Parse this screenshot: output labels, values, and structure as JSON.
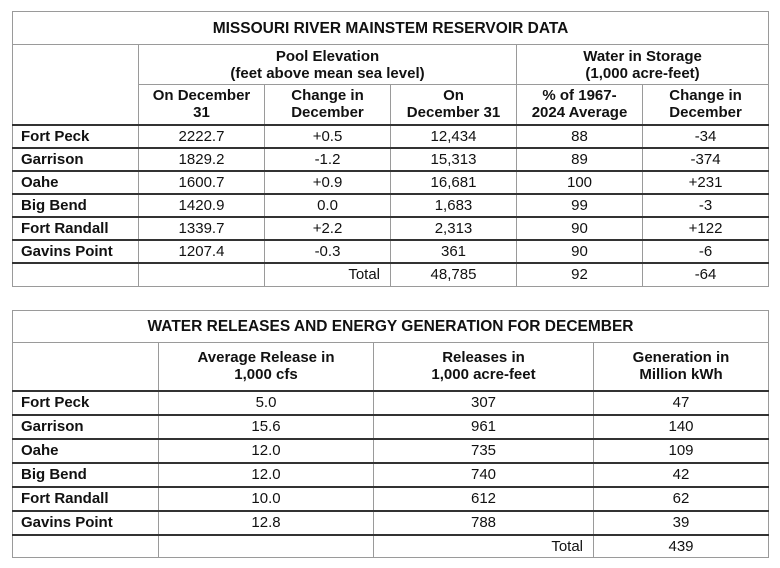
{
  "reservoir": {
    "title": "MISSOURI RIVER MAINSTEM RESERVOIR DATA",
    "group_pool": [
      "Pool Elevation",
      "(feet above mean sea level)"
    ],
    "group_storage": [
      "Water in Storage",
      "(1,000 acre-feet)"
    ],
    "columns": [
      [
        "On December",
        "31"
      ],
      [
        "Change in",
        "December"
      ],
      [
        "On",
        "December 31"
      ],
      [
        "% of 1967-",
        "2024 Average"
      ],
      [
        "Change in",
        "December"
      ]
    ],
    "rows": [
      {
        "name": "Fort Peck",
        "elev": "2222.7",
        "elev_change": "+0.5",
        "storage": "12,434",
        "pct": "88",
        "storage_change": "-34"
      },
      {
        "name": "Garrison",
        "elev": "1829.2",
        "elev_change": "-1.2",
        "storage": "15,313",
        "pct": "89",
        "storage_change": "-374"
      },
      {
        "name": "Oahe",
        "elev": "1600.7",
        "elev_change": "+0.9",
        "storage": "16,681",
        "pct": "100",
        "storage_change": "+231"
      },
      {
        "name": "Big Bend",
        "elev": "1420.9",
        "elev_change": "0.0",
        "storage": "1,683",
        "pct": "99",
        "storage_change": "-3"
      },
      {
        "name": "Fort Randall",
        "elev": "1339.7",
        "elev_change": "+2.2",
        "storage": "2,313",
        "pct": "90",
        "storage_change": "+122"
      },
      {
        "name": "Gavins Point",
        "elev": "1207.4",
        "elev_change": "-0.3",
        "storage": "361",
        "pct": "90",
        "storage_change": "-6"
      }
    ],
    "total": {
      "label": "Total",
      "storage": "48,785",
      "pct": "92",
      "storage_change": "-64"
    }
  },
  "releases": {
    "title": "WATER RELEASES AND ENERGY GENERATION FOR DECEMBER",
    "columns": [
      [
        "Average Release in",
        "1,000 cfs"
      ],
      [
        "Releases in",
        "1,000 acre-feet"
      ],
      [
        "Generation in",
        "Million kWh"
      ]
    ],
    "rows": [
      {
        "name": "Fort Peck",
        "avg": "5.0",
        "rel": "307",
        "gen": "47"
      },
      {
        "name": "Garrison",
        "avg": "15.6",
        "rel": "961",
        "gen": "140"
      },
      {
        "name": "Oahe",
        "avg": "12.0",
        "rel": "735",
        "gen": "109"
      },
      {
        "name": "Big Bend",
        "avg": "12.0",
        "rel": "740",
        "gen": "42"
      },
      {
        "name": "Fort Randall",
        "avg": "10.0",
        "rel": "612",
        "gen": "62"
      },
      {
        "name": "Gavins Point",
        "avg": "12.8",
        "rel": "788",
        "gen": "39"
      }
    ],
    "total": {
      "label": "Total",
      "gen": "439"
    }
  }
}
